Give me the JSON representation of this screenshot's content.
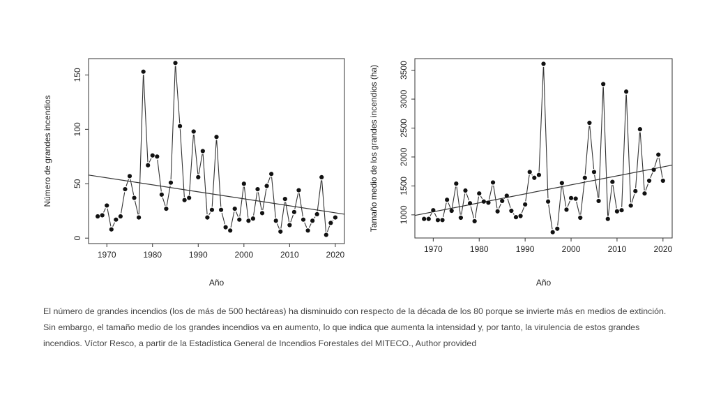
{
  "caption": "El número de grandes incendios (los de más de 500 hectáreas) ha disminuido con respecto de la década de los 80 porque se invierte más en medios de extinción. Sin embargo, el tamaño medio de los grandes incendios va en aumento, lo que indica que aumenta la intensidad y, por tanto, la virulencia de estos grandes incendios. Víctor Resco, a partir de la Estadística General de Incendios Forestales del MITECO., Author provided",
  "chart_data": [
    {
      "type": "line",
      "title": "",
      "xlabel": "Año",
      "ylabel": "Número de grandes incendios",
      "xlim": [
        1966,
        2022
      ],
      "ylim": [
        -5,
        165
      ],
      "xticks": [
        1970,
        1980,
        1990,
        2000,
        2010,
        2020
      ],
      "yticks": [
        0,
        50,
        100,
        150
      ],
      "grid": false,
      "series": [
        {
          "x": [
            1968,
            1969,
            1970,
            1971,
            1972,
            1973,
            1974,
            1975,
            1976,
            1977,
            1978,
            1979,
            1980,
            1981,
            1982,
            1983,
            1984,
            1985,
            1986,
            1987,
            1988,
            1989,
            1990,
            1991,
            1992,
            1993,
            1994,
            1995,
            1996,
            1997,
            1998,
            1999,
            2000,
            2001,
            2002,
            2003,
            2004,
            2005,
            2006,
            2007,
            2008,
            2009,
            2010,
            2011,
            2012,
            2013,
            2014,
            2015,
            2016,
            2017,
            2018,
            2019,
            2020
          ],
          "y": [
            20,
            21,
            30,
            8,
            17,
            20,
            45,
            57,
            37,
            19,
            153,
            67,
            76,
            75,
            40,
            27,
            51,
            161,
            103,
            35,
            37,
            98,
            56,
            80,
            19,
            26,
            93,
            26,
            10,
            7,
            27,
            17,
            50,
            16,
            18,
            45,
            23,
            48,
            59,
            16,
            6,
            36,
            12,
            24,
            44,
            17,
            7,
            16,
            22,
            56,
            3,
            14,
            19
          ]
        }
      ],
      "trend": {
        "x": [
          1966,
          2022
        ],
        "y": [
          58,
          22
        ]
      }
    },
    {
      "type": "line",
      "title": "",
      "xlabel": "Año",
      "ylabel": "Tamaño medio de los grandes incendios (ha)",
      "xlim": [
        1966,
        2022
      ],
      "ylim": [
        600,
        3700
      ],
      "xticks": [
        1970,
        1980,
        1990,
        2000,
        2010,
        2020
      ],
      "yticks": [
        1000,
        1500,
        2000,
        2500,
        3000,
        3500
      ],
      "grid": false,
      "series": [
        {
          "x": [
            1968,
            1969,
            1970,
            1971,
            1972,
            1973,
            1974,
            1975,
            1976,
            1977,
            1978,
            1979,
            1980,
            1981,
            1982,
            1983,
            1984,
            1985,
            1986,
            1987,
            1988,
            1989,
            1990,
            1991,
            1992,
            1993,
            1994,
            1995,
            1996,
            1997,
            1998,
            1999,
            2000,
            2001,
            2002,
            2003,
            2004,
            2005,
            2006,
            2007,
            2008,
            2009,
            2010,
            2011,
            2012,
            2013,
            2014,
            2015,
            2016,
            2017,
            2018,
            2019,
            2020
          ],
          "y": [
            930,
            930,
            1080,
            910,
            910,
            1260,
            1070,
            1540,
            950,
            1420,
            1200,
            890,
            1370,
            1230,
            1210,
            1560,
            1060,
            1240,
            1330,
            1070,
            960,
            980,
            1180,
            1740,
            1640,
            1690,
            3610,
            1230,
            700,
            760,
            1550,
            1090,
            1290,
            1280,
            950,
            1640,
            2590,
            1740,
            1240,
            3260,
            930,
            1570,
            1060,
            1080,
            3130,
            1160,
            1410,
            2480,
            1370,
            1590,
            1780,
            2040,
            1590
          ]
        }
      ],
      "trend": {
        "x": [
          1966,
          2022
        ],
        "y": [
          990,
          1860
        ]
      }
    }
  ]
}
